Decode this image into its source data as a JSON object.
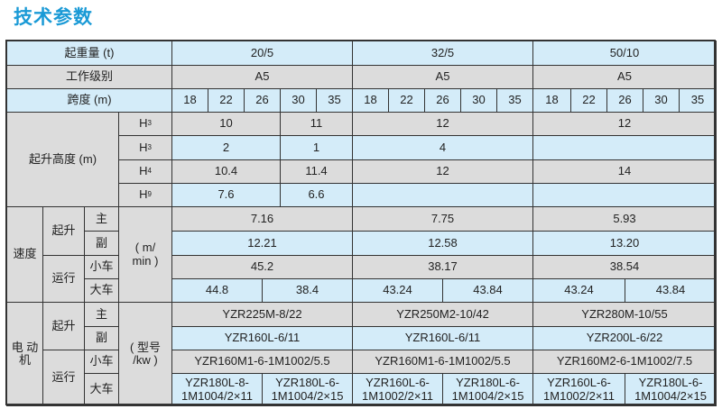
{
  "title": "技术参数",
  "header": {
    "capacity_label": "起重量 (t)",
    "grade_label": "工作级别",
    "span_label": "跨度 (m)",
    "capacities": [
      "20/5",
      "32/5",
      "50/10"
    ],
    "grades": [
      "A5",
      "A5",
      "A5"
    ],
    "spans": [
      "18",
      "22",
      "26",
      "30",
      "35"
    ]
  },
  "lift_height": {
    "label": "起升高度 (m)",
    "rows": [
      {
        "letter": "H",
        "index": "3",
        "values": [
          "10",
          "11",
          "12",
          "12"
        ]
      },
      {
        "letter": "H",
        "index": "3",
        "values": [
          "2",
          "1",
          "4",
          ""
        ]
      },
      {
        "letter": "H",
        "index": "4",
        "values": [
          "10.4",
          "11.4",
          "12",
          "14"
        ]
      },
      {
        "letter": "H",
        "index": "9",
        "values": [
          "7.6",
          "6.6",
          "",
          ""
        ]
      }
    ]
  },
  "speed": {
    "label": "速度",
    "hoist_label": "起升",
    "travel_label": "运行",
    "main_label": "主",
    "aux_label": "副",
    "trolley_label": "小车",
    "crane_label": "大车",
    "unit": "( m/\nmin )",
    "main": [
      "7.16",
      "7.75",
      "5.93"
    ],
    "aux": [
      "12.21",
      "12.58",
      "13.20"
    ],
    "trolley": [
      "45.2",
      "38.17",
      "38.54"
    ],
    "crane": [
      "44.8",
      "38.4",
      "43.24",
      "43.84",
      "43.24",
      "43.84"
    ]
  },
  "motor": {
    "label": "电 动\n机",
    "hoist_label": "起升",
    "travel_label": "运行",
    "main_label": "主",
    "aux_label": "副",
    "trolley_label": "小车",
    "crane_label": "大车",
    "unit": "( 型号\n/kw )",
    "main": [
      "YZR225M-8/22",
      "YZR250M2-10/42",
      "YZR280M-10/55"
    ],
    "aux": [
      "YZR160L-6/11",
      "YZR160L-6/11",
      "YZR200L-6/22"
    ],
    "trolley": [
      "YZR160M1-6-1M1002/5.5",
      "YZR160M1-6-1M1002/5.5",
      "YZR160M2-6-1M1002/7.5"
    ],
    "crane": [
      "YZR180L-8-\n1M1004/2×11",
      "YZR180L-6-\n1M1004/2×15",
      "YZR160L-6-\n1M1002/2×11",
      "YZR180L-6-\n1M1004/2×15",
      "YZR160L-6-\n1M1002/2×11",
      "YZR180L-6-\n1M1004/2×15"
    ]
  },
  "colors": {
    "title": "#1a9ad6",
    "row_blue": "#d4ecf9",
    "row_gray": "#dcdcdc",
    "border": "#333333"
  }
}
